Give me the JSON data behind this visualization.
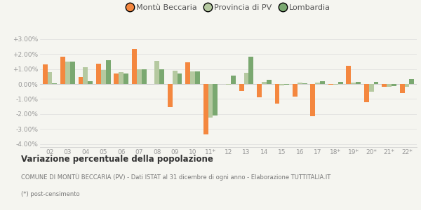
{
  "years": [
    "02",
    "03",
    "04",
    "05",
    "06",
    "07",
    "08",
    "09",
    "10",
    "11*",
    "12",
    "13",
    "14",
    "15",
    "16",
    "17",
    "18*",
    "19*",
    "20*",
    "21*",
    "22*"
  ],
  "montu": [
    1.3,
    1.8,
    0.45,
    1.35,
    0.7,
    2.35,
    -0.02,
    -1.55,
    1.45,
    -3.35,
    -0.02,
    -0.45,
    -0.9,
    -1.3,
    -0.85,
    -2.15,
    -0.05,
    1.2,
    -1.2,
    -0.2,
    -0.6
  ],
  "provincia": [
    0.8,
    1.5,
    1.1,
    0.95,
    0.8,
    1.0,
    1.55,
    0.9,
    0.85,
    -2.25,
    -0.05,
    0.75,
    0.15,
    -0.1,
    0.1,
    0.1,
    -0.05,
    0.1,
    -0.5,
    -0.2,
    -0.2
  ],
  "lombardia": [
    0.05,
    1.5,
    0.2,
    1.6,
    0.7,
    1.0,
    1.0,
    0.7,
    0.85,
    -2.1,
    0.55,
    1.8,
    0.3,
    -0.05,
    0.05,
    0.2,
    0.15,
    0.15,
    0.15,
    -0.15,
    0.35
  ],
  "color_montu": "#f4873f",
  "color_provincia": "#b5c9a0",
  "color_lombardia": "#7aa870",
  "bg_color": "#f5f5f0",
  "ylim": [
    -4.2,
    3.5
  ],
  "yticks": [
    -4.0,
    -3.0,
    -2.0,
    -1.0,
    0.0,
    1.0,
    2.0,
    3.0
  ],
  "title_bold": "Variazione percentuale della popolazione",
  "subtitle": "COMUNE DI MONTÙ BECCARIA (PV) - Dati ISTAT al 31 dicembre di ogni anno - Elaborazione TUTTITALIA.IT",
  "footnote": "(*) post-censimento",
  "legend_labels": [
    "Montù Beccaria",
    "Provincia di PV",
    "Lombardia"
  ]
}
